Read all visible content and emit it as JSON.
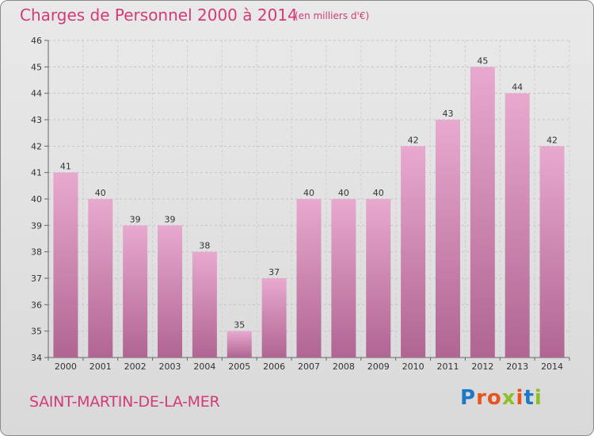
{
  "header": {
    "title": "Charges de Personnel 2000 à 2014",
    "subtitle": "(en milliers d'€)"
  },
  "footer": {
    "commune": "SAINT-MARTIN-DE-LA-MER",
    "logo": "Proxiti"
  },
  "colors": {
    "title": "#d23b78",
    "bar_top": "#e8a9cf",
    "bar_bottom": "#b06592",
    "logo_letters": [
      "#1f77c8",
      "#e8541e",
      "#e8541e",
      "#8fbf26",
      "#e8541e",
      "#1f77c8",
      "#8fbf26"
    ]
  },
  "chart_data": {
    "type": "bar",
    "title": "Charges de Personnel 2000 à 2014",
    "subtitle": "(en milliers d'€)",
    "categories": [
      "2000",
      "2001",
      "2002",
      "2003",
      "2004",
      "2005",
      "2006",
      "2007",
      "2008",
      "2009",
      "2010",
      "2011",
      "2012",
      "2013",
      "2014"
    ],
    "values": [
      41,
      40,
      39,
      39,
      38,
      35,
      37,
      40,
      40,
      40,
      42,
      43,
      45,
      44,
      42
    ],
    "ylim": [
      34,
      46
    ],
    "yticks": [
      34,
      35,
      36,
      37,
      38,
      39,
      40,
      41,
      42,
      43,
      44,
      45,
      46
    ],
    "xlabel": "",
    "ylabel": "",
    "grid": true,
    "legend": "none"
  }
}
